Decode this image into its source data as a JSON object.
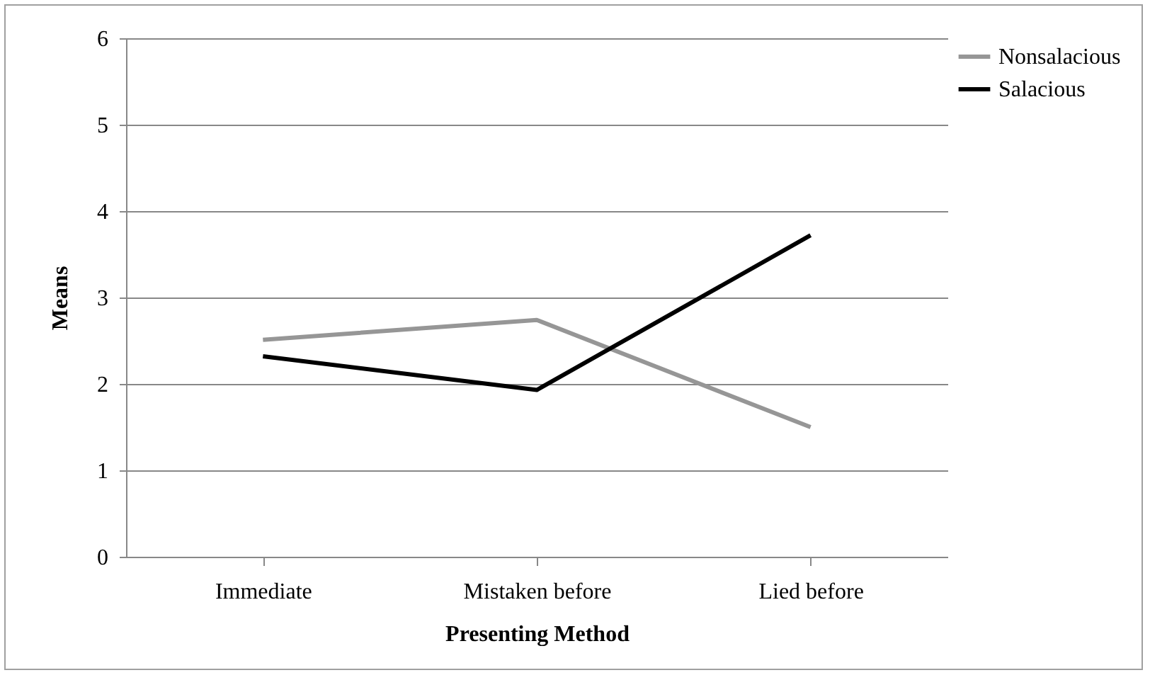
{
  "chart_data": {
    "type": "line",
    "xlabel": "Presenting Method",
    "ylabel": "Means",
    "categories": [
      "Immediate",
      "Mistaken before",
      "Lied before"
    ],
    "series": [
      {
        "name": "Nonsalacious",
        "color": "#969696",
        "values": [
          2.51,
          2.74,
          1.5
        ]
      },
      {
        "name": "Salacious",
        "color": "#000000",
        "values": [
          2.32,
          1.93,
          3.72
        ]
      }
    ],
    "ylim": [
      0,
      6
    ],
    "yticks": [
      0,
      1,
      2,
      3,
      4,
      5,
      6
    ],
    "grid": "y",
    "legend": "right",
    "marker": "none",
    "line_style": "solid"
  }
}
